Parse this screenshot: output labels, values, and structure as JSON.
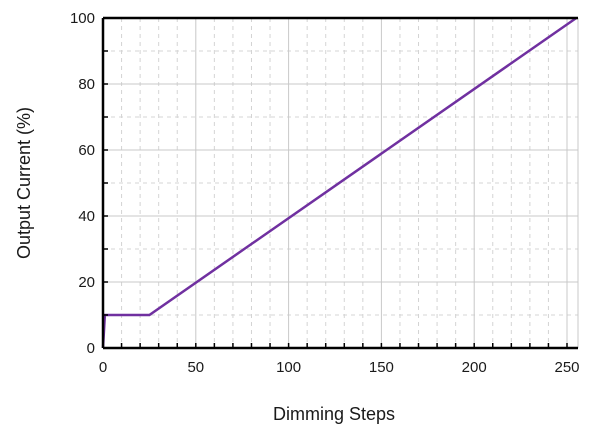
{
  "chart_data": {
    "type": "line",
    "xlabel": "Dimming Steps",
    "ylabel": "Output Current (%)",
    "xlim": [
      0,
      255
    ],
    "ylim": [
      0,
      100
    ],
    "x_ticks": [
      0,
      50,
      100,
      150,
      200,
      250
    ],
    "y_ticks": [
      0,
      20,
      40,
      60,
      80,
      100
    ],
    "x_minor_step": 10,
    "y_minor_step": 10,
    "grid": true,
    "legend": "none",
    "series": [
      {
        "color": "#7030a0",
        "x": [
          0,
          1,
          25,
          255
        ],
        "y": [
          0,
          10,
          10,
          100
        ]
      }
    ],
    "colors": {
      "series": "#7030a0",
      "axis": "#000000",
      "grid_major": "#c8c8c8",
      "grid_minor": "#d4d4d4"
    }
  }
}
